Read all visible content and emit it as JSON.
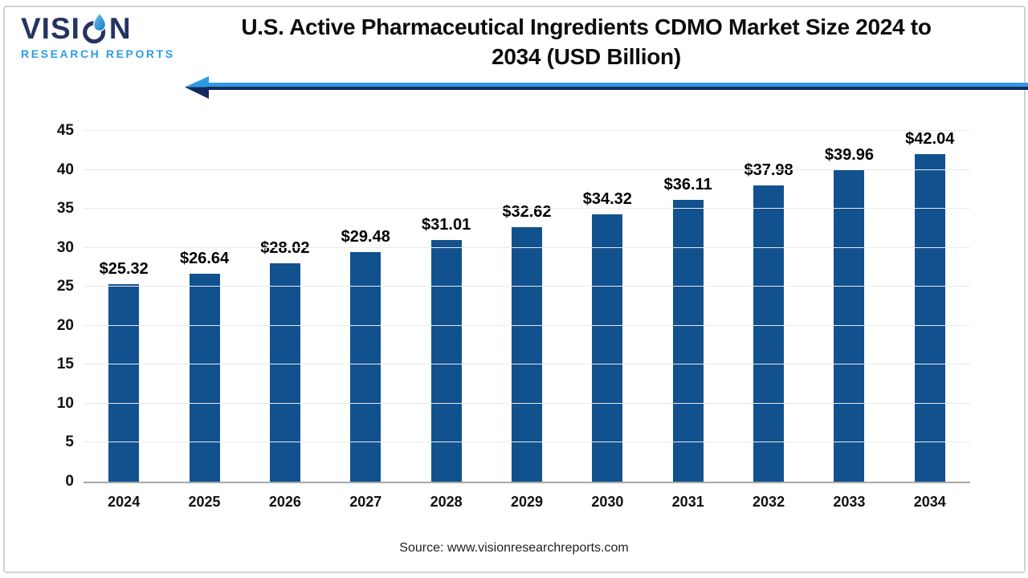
{
  "logo": {
    "brand_part1": "VISI",
    "brand_part2": "N",
    "subtitle": "RESEARCH REPORTS"
  },
  "header": {
    "title_lines": [
      "U.S. Active Pharmaceutical Ingredients CDMO Market Size 2024 to",
      "2034 (USD Billion)"
    ]
  },
  "footer": {
    "source": "Source: www.visionresearchreports.com"
  },
  "colors": {
    "bar": "#11518E",
    "arrow_light": "#2E9AE6",
    "arrow_dark": "#16295E",
    "logo_navy": "#25335F",
    "logo_blue": "#2D9EE2",
    "gridline": "#EAEAEA",
    "axis_line": "#A8A8A8"
  },
  "chart_data": {
    "type": "bar",
    "title": "U.S. Active Pharmaceutical Ingredients CDMO Market Size 2024 to 2034 (USD Billion)",
    "categories": [
      "2024",
      "2025",
      "2026",
      "2027",
      "2028",
      "2029",
      "2030",
      "2031",
      "2032",
      "2033",
      "2034"
    ],
    "values": [
      25.32,
      26.64,
      28.02,
      29.48,
      31.01,
      32.62,
      34.32,
      36.11,
      37.98,
      39.96,
      42.04
    ],
    "data_labels": [
      "$25.32",
      "$26.64",
      "$28.02",
      "$29.48",
      "$31.01",
      "$32.62",
      "$34.32",
      "$36.11",
      "$37.98",
      "$39.96",
      "$42.04"
    ],
    "xlabel": "",
    "ylabel": "",
    "ylim": [
      0,
      45
    ],
    "ytick_step": 5,
    "grid": true,
    "legend_position": "none"
  }
}
